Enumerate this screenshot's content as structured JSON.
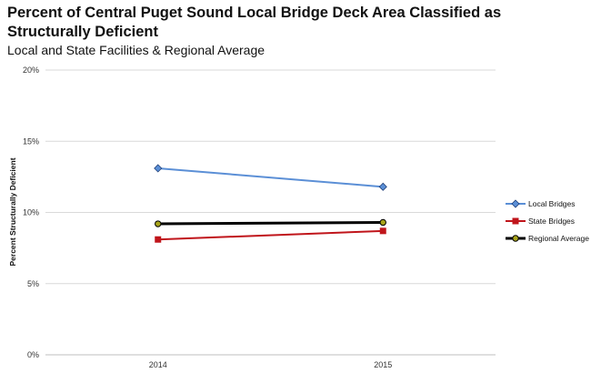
{
  "chart_data": {
    "type": "line",
    "title": "Percent of Central Puget Sound Local Bridge Deck Area Classified as Structurally Deficient",
    "subtitle": "Local and State Facilities & Regional Average",
    "xlabel": "",
    "ylabel": "Percent Structurally Deficient",
    "categories": [
      "2014",
      "2015"
    ],
    "ylim": [
      0,
      20
    ],
    "yticks": [
      "0%",
      "5%",
      "10%",
      "15%",
      "20%"
    ],
    "grid": true,
    "legend_position": "right",
    "series": [
      {
        "name": "Local Bridges",
        "values": [
          13.1,
          11.8
        ],
        "color": "#5b8fd6",
        "marker": "diamond"
      },
      {
        "name": "State Bridges",
        "values": [
          8.1,
          8.7
        ],
        "color": "#c0151b",
        "marker": "square"
      },
      {
        "name": "Regional Average",
        "values": [
          9.2,
          9.3
        ],
        "color": "#000000",
        "marker": "circle",
        "marker_fill": "#a8a41a"
      }
    ]
  }
}
